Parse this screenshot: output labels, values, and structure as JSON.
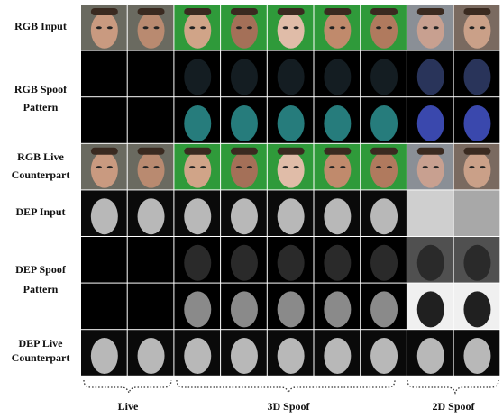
{
  "rows": [
    {
      "lines": [
        "RGB Input"
      ]
    },
    {
      "lines": [
        "RGB Spoof",
        "Pattern"
      ]
    },
    {
      "lines": [
        "RGB Live",
        "Counterpart"
      ]
    },
    {
      "lines": [
        "DEP Input"
      ]
    },
    {
      "lines": [
        "DEP Spoof",
        "Pattern"
      ]
    },
    {
      "lines": [
        "DEP Live",
        "Counterpart"
      ]
    }
  ],
  "groups": [
    "Live",
    "3D Spoof",
    "2D Spoof"
  ]
}
